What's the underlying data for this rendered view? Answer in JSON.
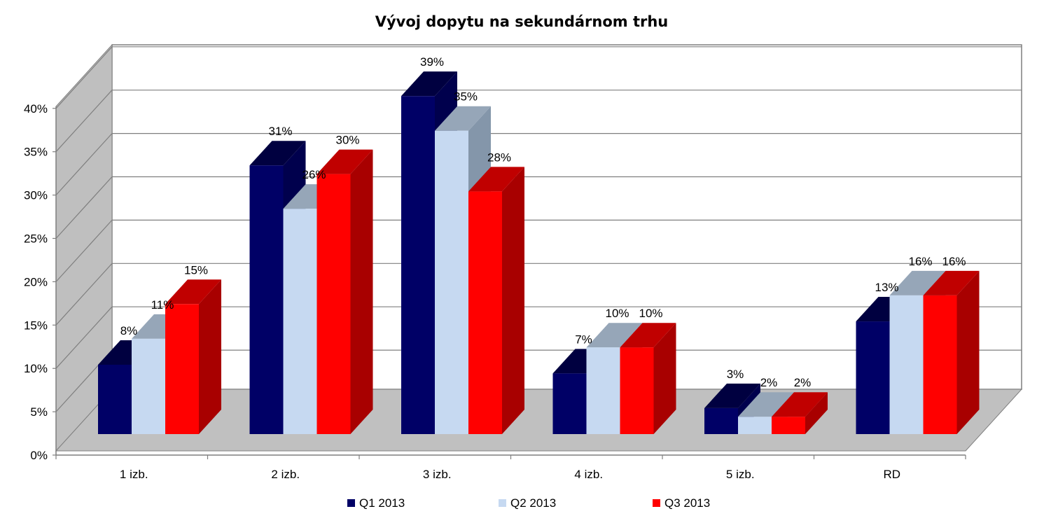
{
  "chart_data": {
    "type": "bar",
    "title": "Vývoj dopytu na sekundárnom trhu",
    "categories": [
      "1 izb.",
      "2 izb.",
      "3 izb.",
      "4 izb.",
      "5 izb.",
      "RD"
    ],
    "y_ticks": [
      "0%",
      "5%",
      "10%",
      "15%",
      "20%",
      "25%",
      "30%",
      "35%",
      "40%"
    ],
    "ylim": [
      0,
      40
    ],
    "grid": true,
    "legend_position": "bottom",
    "series": [
      {
        "name": "Q1 2013",
        "values": [
          8,
          31,
          39,
          7,
          3,
          13
        ],
        "labels": [
          "8%",
          "31%",
          "39%",
          "7%",
          "3%",
          "13%"
        ],
        "color": "#000066",
        "top_color": "#000040",
        "side_color": "#00004d"
      },
      {
        "name": "Q2 2013",
        "values": [
          11,
          26,
          35,
          10,
          2,
          16
        ],
        "labels": [
          "11%",
          "26%",
          "35%",
          "10%",
          "2%",
          "16%"
        ],
        "color": "#c6d9f1",
        "top_color": "#96a6b8",
        "side_color": "#8496aa"
      },
      {
        "name": "Q3 2013",
        "values": [
          15,
          30,
          28,
          10,
          2,
          16
        ],
        "labels": [
          "15%",
          "30%",
          "28%",
          "10%",
          "2%",
          "16%"
        ],
        "color": "#ff0000",
        "top_color": "#c00000",
        "side_color": "#a80000"
      }
    ]
  }
}
